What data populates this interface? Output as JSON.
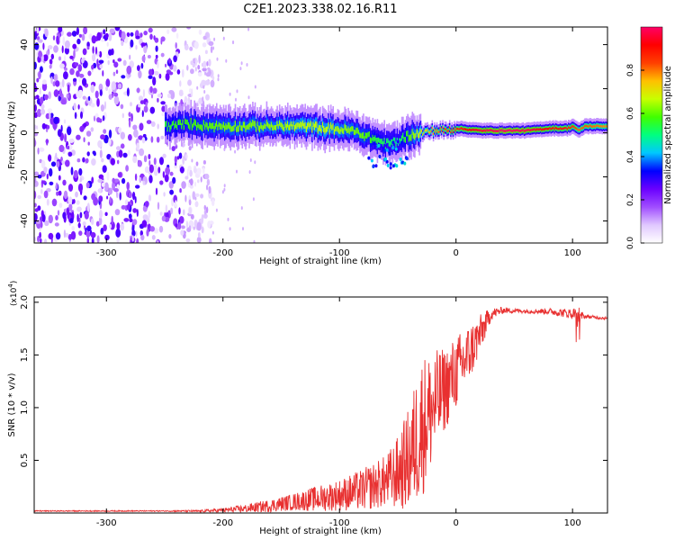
{
  "title": "C2E1.2023.338.02.16.R11",
  "chart_data": [
    {
      "type": "heatmap",
      "name": "spectrogram",
      "xlabel": "Height of straight line (km)",
      "ylabel": "Frequency (Hz)",
      "xlim": [
        -362,
        130
      ],
      "ylim": [
        -50,
        48
      ],
      "xticks": [
        -300,
        -200,
        -100,
        0,
        100
      ],
      "yticks": [
        -40,
        -20,
        0,
        20,
        40
      ],
      "colorbar": {
        "label": "Normalized spectral amplitude",
        "range": [
          0,
          1
        ],
        "ticks": [
          0.0,
          0.2,
          0.4,
          0.6,
          0.8
        ],
        "colormap": [
          "#ffffff",
          "#e0c8ff",
          "#a04dff",
          "#6a00ff",
          "#0000ff",
          "#00c8ff",
          "#00ff80",
          "#40ff00",
          "#c8ff00",
          "#ffc000",
          "#ff4000",
          "#ff0000",
          "#ff0066"
        ]
      },
      "noise_region": {
        "x_from": -362,
        "x_to": -220
      },
      "ridge": {
        "x": [
          -250,
          -230,
          -210,
          -190,
          -170,
          -150,
          -130,
          -110,
          -90,
          -80,
          -70,
          -60,
          -50,
          -45,
          -40,
          -30,
          -20,
          -10,
          0,
          20,
          40,
          60,
          80,
          95,
          100,
          105,
          110,
          120,
          130
        ],
        "freq": [
          3,
          4,
          3,
          3,
          3,
          3,
          3,
          2,
          1,
          -1,
          -3,
          -5,
          -4,
          -2,
          -1,
          0,
          1,
          1,
          2,
          1,
          1,
          1,
          2,
          2,
          3,
          1,
          3,
          3,
          3
        ],
        "amplitude": [
          0.55,
          0.58,
          0.6,
          0.62,
          0.62,
          0.64,
          0.66,
          0.66,
          0.62,
          0.6,
          0.55,
          0.52,
          0.5,
          0.55,
          0.6,
          0.7,
          0.78,
          0.82,
          0.86,
          0.96,
          1.0,
          0.98,
          0.9,
          0.88,
          0.85,
          0.8,
          0.82,
          0.8,
          0.78
        ]
      }
    },
    {
      "type": "line",
      "name": "snr",
      "xlabel": "Height of straight line (km)",
      "ylabel": "SNR (10 * v/v)",
      "y_multiplier": "(x10",
      "y_multiplier_exp": "4",
      "y_multiplier_close": ")",
      "xlim": [
        -362,
        130
      ],
      "ylim": [
        0,
        2.05
      ],
      "xticks": [
        -300,
        -200,
        -100,
        0,
        100
      ],
      "yticks": [
        0.5,
        1.0,
        1.5,
        2.0
      ],
      "line_color": "#e83030",
      "envelope": {
        "x": [
          -362,
          -250,
          -220,
          -200,
          -180,
          -160,
          -140,
          -120,
          -100,
          -80,
          -60,
          -50,
          -40,
          -30,
          -20,
          -10,
          0,
          10,
          20,
          30,
          40,
          60,
          80,
          100,
          105,
          110,
          120,
          130
        ],
        "y": [
          0.02,
          0.02,
          0.02,
          0.03,
          0.05,
          0.08,
          0.12,
          0.16,
          0.2,
          0.26,
          0.35,
          0.45,
          0.62,
          0.95,
          1.1,
          1.25,
          1.4,
          1.55,
          1.72,
          1.9,
          1.93,
          1.92,
          1.92,
          1.9,
          1.9,
          1.87,
          1.86,
          1.85
        ],
        "spread": [
          0.005,
          0.005,
          0.01,
          0.02,
          0.04,
          0.06,
          0.08,
          0.12,
          0.15,
          0.2,
          0.25,
          0.35,
          0.5,
          0.7,
          0.55,
          0.4,
          0.35,
          0.3,
          0.2,
          0.06,
          0.03,
          0.02,
          0.03,
          0.05,
          0.08,
          0.02,
          0.015,
          0.015
        ]
      }
    }
  ]
}
